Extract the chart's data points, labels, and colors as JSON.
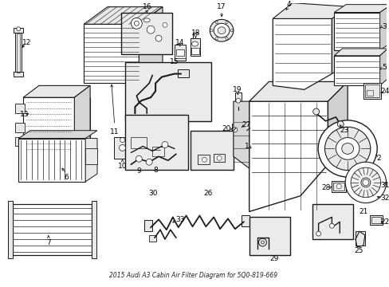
{
  "title": "2015 Audi A3 Cabin Air Filter Diagram for 5Q0-819-669",
  "bg_color": "#ffffff",
  "line_color": "#1a1a1a",
  "font_size_label": 6.5,
  "font_size_title": 5.5,
  "gray_fill": "#e8e8e8",
  "light_fill": "#f0f0f0",
  "box_fill": "#ebebeb"
}
